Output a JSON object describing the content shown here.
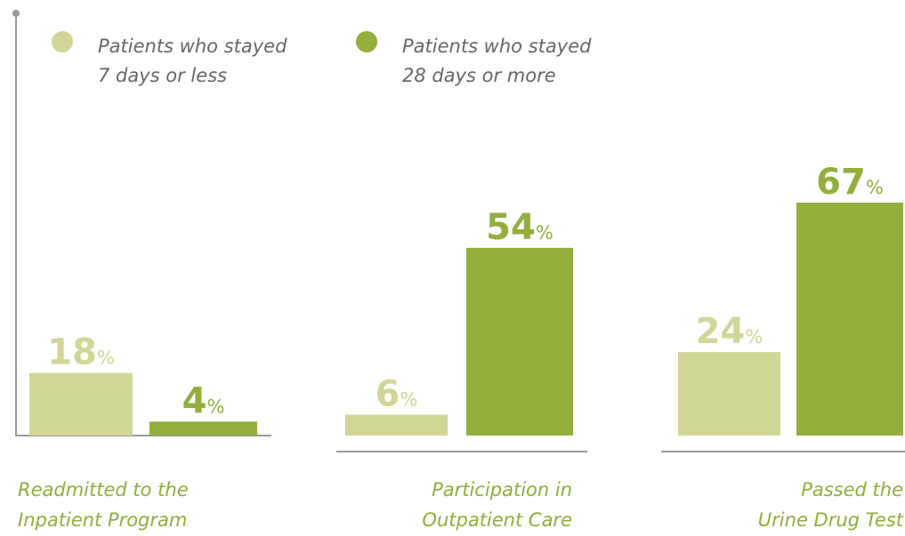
{
  "chart_data": {
    "type": "bar",
    "categories": [
      "Readmitted to the\nInpatient Program",
      "Participation in\nOutpatient Care",
      "Passed the\nUrine Drug Test"
    ],
    "series": [
      {
        "name": "Patients who stayed\n7 days or less",
        "color": "#d1d697",
        "values": [
          18,
          6,
          24
        ],
        "value_labels": [
          "18%",
          "6%",
          "24%"
        ]
      },
      {
        "name": "Patients who stayed\n28 days or more",
        "color": "#93ae3b",
        "values": [
          4,
          54,
          67
        ],
        "value_labels": [
          "4%",
          "54%",
          "67%"
        ]
      }
    ]
  }
}
